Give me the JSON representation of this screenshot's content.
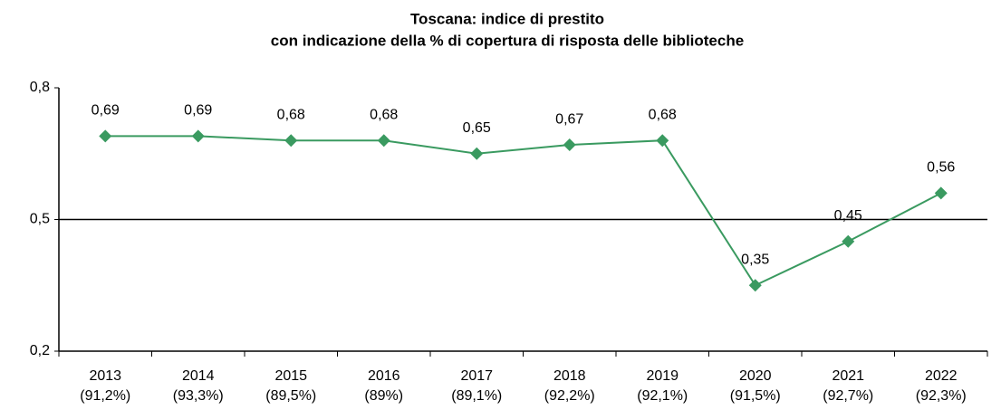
{
  "chart_data": {
    "type": "line",
    "title": [
      "Toscana: indice di prestito",
      "con indicazione della % di copertura di risposta delle biblioteche"
    ],
    "categories": [
      "2013",
      "2014",
      "2015",
      "2016",
      "2017",
      "2018",
      "2019",
      "2020",
      "2021",
      "2022"
    ],
    "category_sublabels": [
      "(91,2%)",
      "(93,3%)",
      "(89,5%)",
      "(89%)",
      "(89,1%)",
      "(92,2%)",
      "(92,1%)",
      "(91,5%)",
      "(92,7%)",
      "(92,3%)"
    ],
    "values": [
      0.69,
      0.69,
      0.68,
      0.68,
      0.65,
      0.67,
      0.68,
      0.35,
      0.45,
      0.56
    ],
    "value_labels": [
      "0,69",
      "0,69",
      "0,68",
      "0,68",
      "0,65",
      "0,67",
      "0,68",
      "0,35",
      "0,45",
      "0,56"
    ],
    "color": "#3a9a60",
    "ylim": [
      0.2,
      0.8
    ],
    "yticks": [
      {
        "value": 0.2,
        "label": "0,2"
      },
      {
        "value": 0.5,
        "label": "0,5"
      },
      {
        "value": 0.8,
        "label": "0,8"
      }
    ],
    "grid": true
  }
}
